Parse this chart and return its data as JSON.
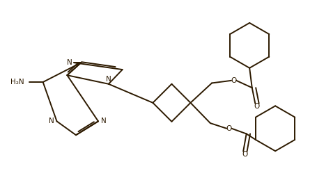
{
  "background_color": "#ffffff",
  "line_color": "#2d1a00",
  "text_color": "#2d1a00",
  "line_width": 1.4,
  "figsize": [
    4.55,
    2.56
  ],
  "dpi": 100,
  "xlim": [
    0,
    10
  ],
  "ylim": [
    0,
    5.62
  ]
}
